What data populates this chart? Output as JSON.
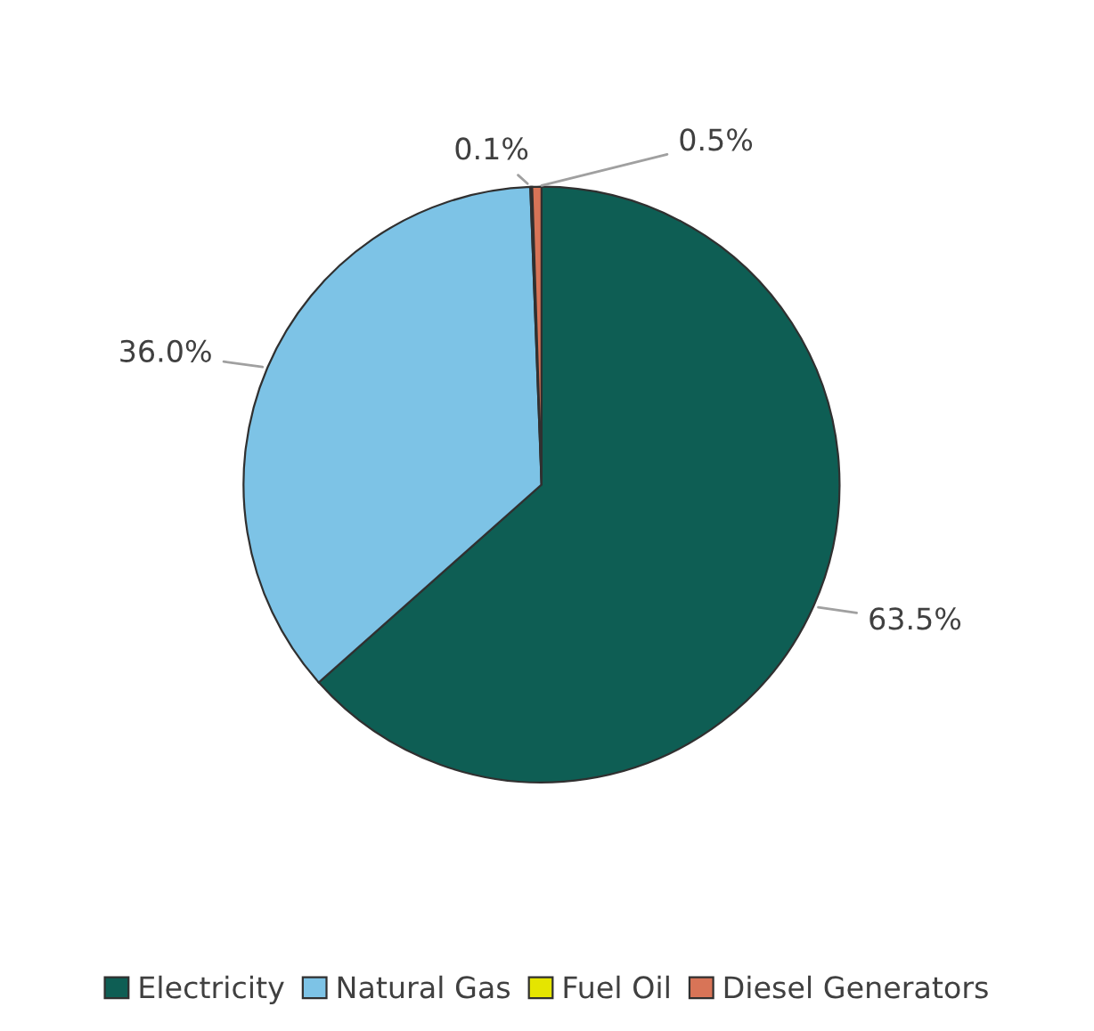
{
  "chart_data": {
    "type": "pie",
    "categories": [
      "Electricity",
      "Natural Gas",
      "Fuel Oil",
      "Diesel Generators"
    ],
    "values": [
      63.5,
      36.0,
      0.1,
      0.5
    ],
    "value_labels": [
      "63.5%",
      "36.0%",
      "0.1%",
      "0.5%"
    ],
    "colors": [
      "#0e5e54",
      "#7dc3e6",
      "#e5e500",
      "#d87457"
    ],
    "legend": "bottom"
  }
}
